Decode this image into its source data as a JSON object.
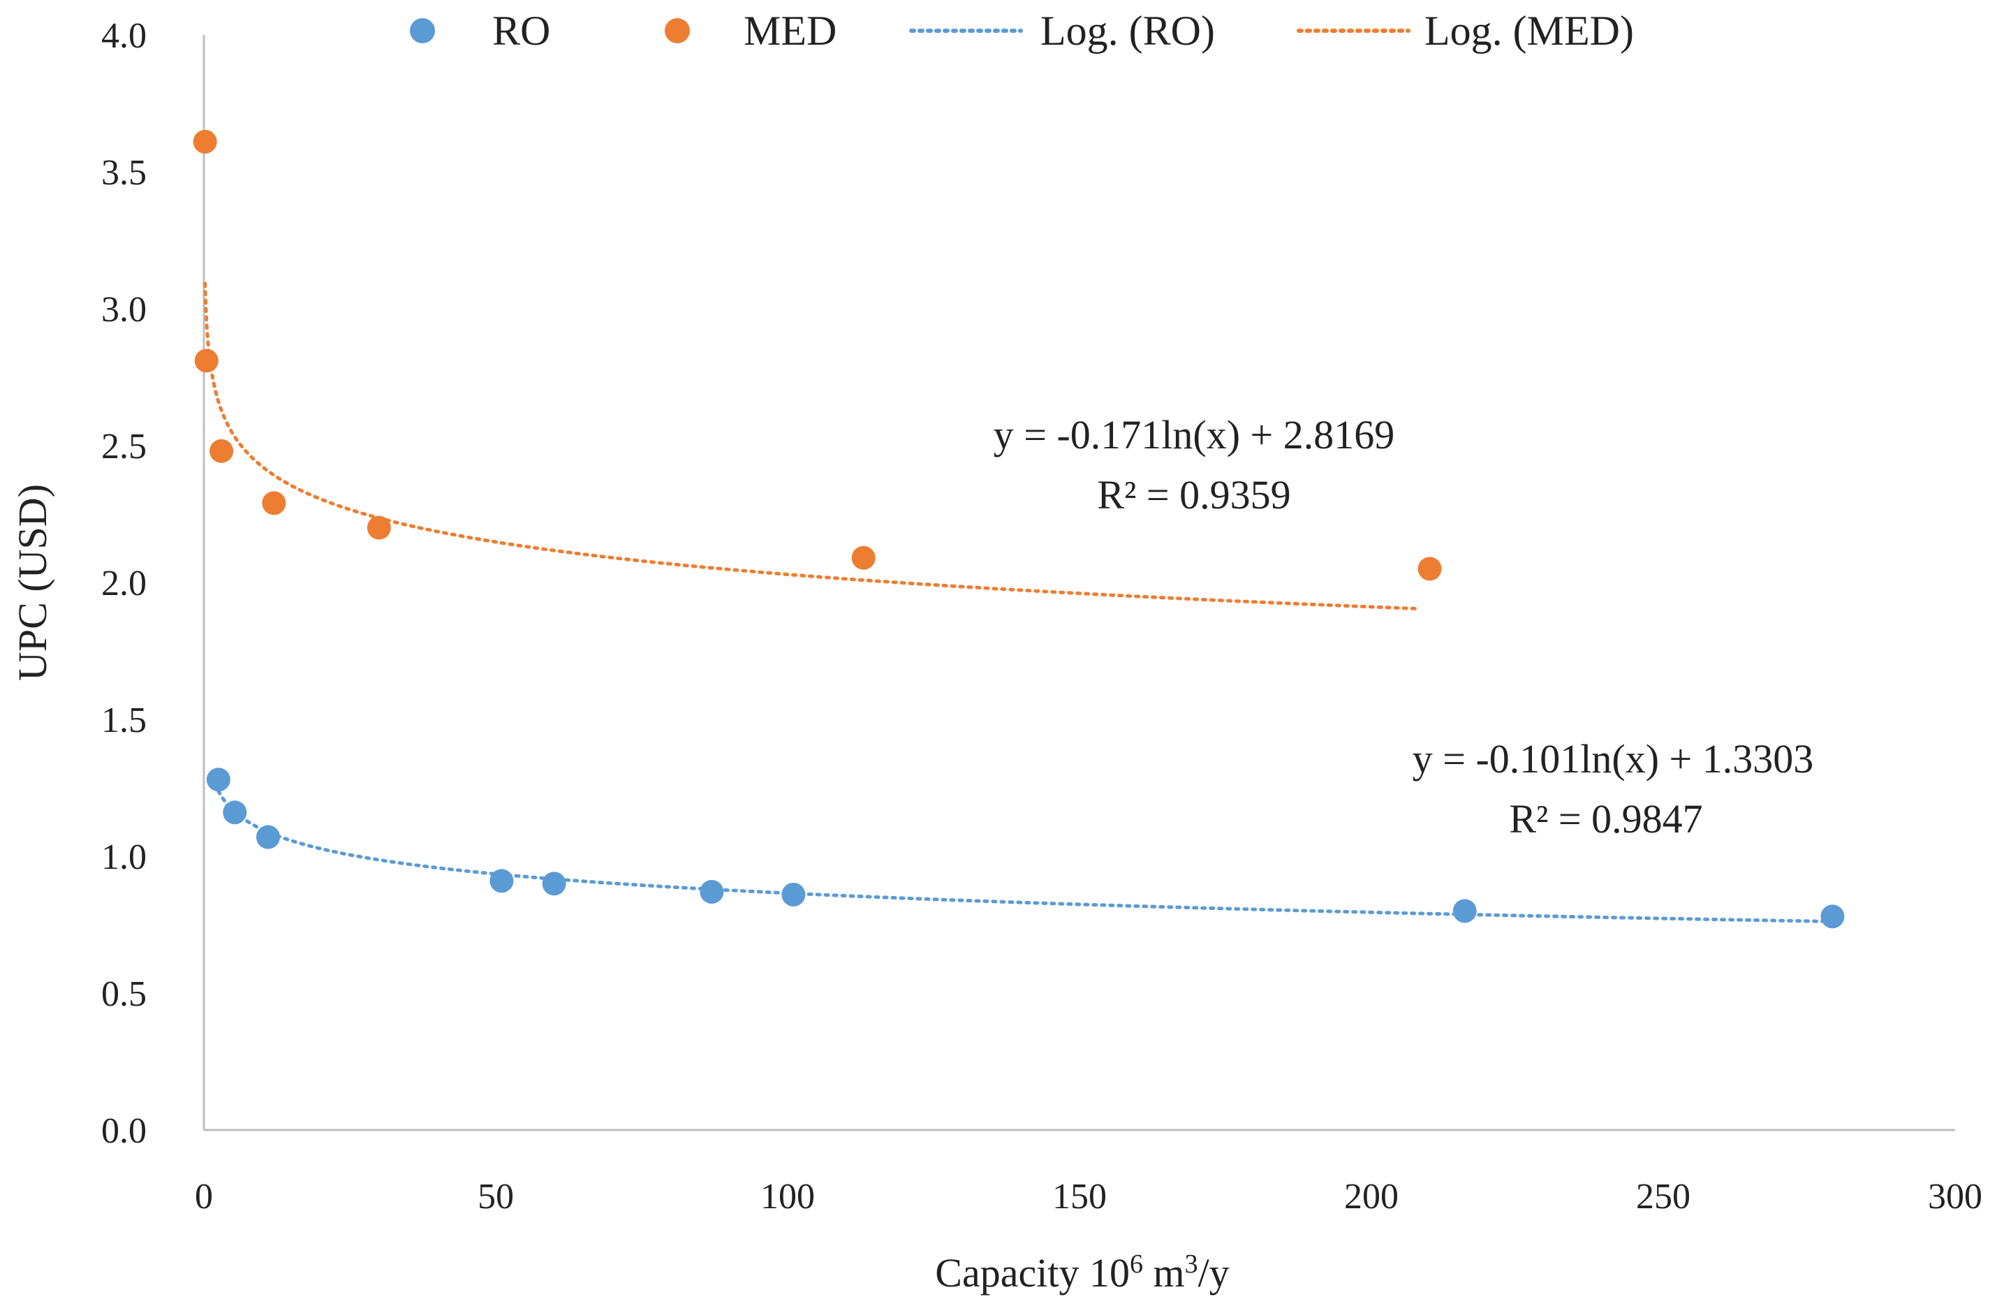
{
  "chart_data": {
    "type": "scatter",
    "title": "",
    "xlabel": "Capacity 10",
    "xlabel_sup1": "6",
    "xlabel_mid": " m",
    "xlabel_sup2": "3",
    "xlabel_end": "/y",
    "ylabel": "UPC (USD)",
    "xlim": [
      0,
      300
    ],
    "ylim": [
      0,
      4
    ],
    "xticks": [
      0,
      50,
      100,
      150,
      200,
      250,
      300
    ],
    "yticks": [
      "0.0",
      "0.5",
      "1.0",
      "1.5",
      "2.0",
      "2.5",
      "3.0",
      "3.5",
      "4.0"
    ],
    "grid": false,
    "legend_position": "top",
    "series": [
      {
        "name": "RO",
        "color": "#5b9bd5",
        "x": [
          2.5,
          5.3,
          11,
          51,
          60,
          87,
          101,
          216,
          279
        ],
        "y": [
          1.28,
          1.16,
          1.07,
          0.91,
          0.9,
          0.87,
          0.86,
          0.8,
          0.78
        ]
      },
      {
        "name": "MED",
        "color": "#ed7d31",
        "x": [
          0.2,
          0.45,
          3,
          12,
          30,
          113,
          210
        ],
        "y": [
          3.61,
          2.81,
          2.48,
          2.29,
          2.2,
          2.09,
          2.05
        ]
      }
    ],
    "trendlines": [
      {
        "name": "Log. (RO)",
        "color": "#5b9bd5",
        "a": -0.101,
        "b": 1.3303,
        "x_range": [
          2.5,
          279
        ],
        "equation": "y = -0.101ln(x) + 1.3303",
        "r2": "R² = 0.9847"
      },
      {
        "name": "Log. (MED)",
        "color": "#ed7d31",
        "a": -0.171,
        "b": 2.8169,
        "x_range": [
          0.2,
          208
        ],
        "equation": "y = -0.171ln(x) + 2.8169",
        "r2": "R² = 0.9359"
      }
    ]
  }
}
